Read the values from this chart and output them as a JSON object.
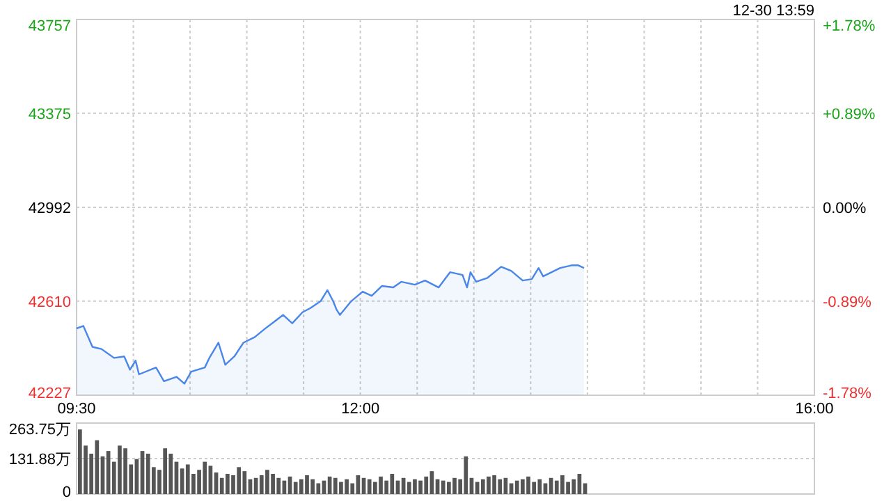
{
  "chart_data": [
    {
      "type": "area",
      "annotations": [
        "12-30 13:59"
      ],
      "xlim": [
        9.5,
        16
      ],
      "ylim": [
        42227,
        43757
      ],
      "y2lim": [
        -1.78,
        1.78
      ],
      "grid": true,
      "xticks": [
        {
          "value": 9.5,
          "label": "09:30"
        },
        {
          "value": 10,
          "label": null
        },
        {
          "value": 10.5,
          "label": null
        },
        {
          "value": 11,
          "label": null
        },
        {
          "value": 11.5,
          "label": null
        },
        {
          "value": 12,
          "label": "12:00"
        },
        {
          "value": 12.5,
          "label": null
        },
        {
          "value": 13,
          "label": null
        },
        {
          "value": 13.5,
          "label": null
        },
        {
          "value": 14,
          "label": null
        },
        {
          "value": 14.5,
          "label": null
        },
        {
          "value": 15,
          "label": null
        },
        {
          "value": 15.5,
          "label": null
        },
        {
          "value": 16,
          "label": "16:00"
        }
      ],
      "yticks": [
        42227,
        42610,
        42992,
        43375,
        43757
      ],
      "y2ticks": [
        {
          "value": -1.78,
          "label": "-1.78%"
        },
        {
          "value": -0.89,
          "label": "-0.89%"
        },
        {
          "value": 0,
          "label": "0.00%"
        },
        {
          "value": 0.89,
          "label": "+0.89%"
        },
        {
          "value": 1.78,
          "label": "+1.78%"
        }
      ],
      "series": [
        {
          "color": "#4a86e8",
          "x": [
            9.5,
            9.56,
            9.64,
            9.72,
            9.83,
            9.92,
            9.97,
            10.02,
            10.05,
            10.2,
            10.27,
            10.38,
            10.45,
            10.51,
            10.63,
            10.67,
            10.75,
            10.81,
            10.89,
            10.97,
            11.07,
            11.16,
            11.24,
            11.32,
            11.4,
            11.49,
            11.56,
            11.65,
            11.71,
            11.76,
            11.79,
            11.82,
            11.92,
            12.02,
            12.1,
            12.19,
            12.29,
            12.36,
            12.48,
            12.57,
            12.69,
            12.79,
            12.9,
            12.94,
            12.97,
            13.02,
            13.12,
            13.24,
            13.33,
            13.43,
            13.51,
            13.57,
            13.61,
            13.76,
            13.86,
            13.92,
            13.97
          ],
          "values": [
            42499,
            42509,
            42424,
            42415,
            42379,
            42385,
            42331,
            42368,
            42312,
            42340,
            42284,
            42302,
            42274,
            42323,
            42340,
            42379,
            42441,
            42351,
            42385,
            42441,
            42464,
            42498,
            42526,
            42554,
            42520,
            42565,
            42582,
            42610,
            42655,
            42610,
            42576,
            42554,
            42610,
            42649,
            42632,
            42672,
            42666,
            42689,
            42677,
            42694,
            42666,
            42728,
            42717,
            42666,
            42728,
            42689,
            42705,
            42750,
            42733,
            42694,
            42700,
            42745,
            42711,
            42745,
            42756,
            42756,
            42745
          ]
        }
      ]
    },
    {
      "type": "bar",
      "xlim": [
        9.5,
        16
      ],
      "ylim": [
        0,
        263.75
      ],
      "grid": "y",
      "tick_labels": "y",
      "yticks": [
        {
          "value": 0,
          "label": "0"
        },
        {
          "value": 131.88,
          "label": "131.88万"
        },
        {
          "value": 263.75,
          "label": "263.75万"
        }
      ],
      "series": [
        {
          "color": "#555555",
          "x": [
            9.5,
            9.55,
            9.6,
            9.65,
            9.7,
            9.75,
            9.8,
            9.85,
            9.9,
            9.95,
            10,
            10.05,
            10.1,
            10.15,
            10.2,
            10.25,
            10.3,
            10.35,
            10.4,
            10.45,
            10.5,
            10.55,
            10.6,
            10.65,
            10.7,
            10.75,
            10.8,
            10.85,
            10.9,
            10.95,
            11,
            11.05,
            11.1,
            11.15,
            11.2,
            11.25,
            11.3,
            11.35,
            11.4,
            11.45,
            11.5,
            11.55,
            11.6,
            11.65,
            11.7,
            11.75,
            11.8,
            11.85,
            11.9,
            11.95,
            12,
            12.05,
            12.1,
            12.15,
            12.2,
            12.25,
            12.3,
            12.35,
            12.4,
            12.45,
            12.5,
            12.55,
            12.6,
            12.65,
            12.7,
            12.75,
            12.8,
            12.85,
            12.9,
            12.95,
            13,
            13.05,
            13.1,
            13.15,
            13.2,
            13.25,
            13.3,
            13.35,
            13.4,
            13.45,
            13.5,
            13.55,
            13.6,
            13.65,
            13.7,
            13.75,
            13.8,
            13.85,
            13.9,
            13.95
          ],
          "values": [
            240,
            180,
            150,
            200,
            140,
            160,
            120,
            180,
            170,
            110,
            130,
            160,
            150,
            100,
            90,
            170,
            150,
            120,
            95,
            110,
            75,
            90,
            120,
            105,
            80,
            60,
            75,
            70,
            100,
            85,
            55,
            60,
            70,
            90,
            75,
            60,
            50,
            65,
            45,
            55,
            70,
            55,
            40,
            50,
            65,
            60,
            45,
            55,
            40,
            70,
            60,
            55,
            45,
            65,
            50,
            75,
            50,
            60,
            45,
            55,
            50,
            65,
            85,
            55,
            50,
            45,
            60,
            55,
            140,
            60,
            45,
            55,
            65,
            70,
            55,
            60,
            40,
            50,
            55,
            65,
            45,
            55,
            40,
            60,
            50,
            70,
            45,
            55,
            75,
            40
          ]
        }
      ]
    }
  ]
}
